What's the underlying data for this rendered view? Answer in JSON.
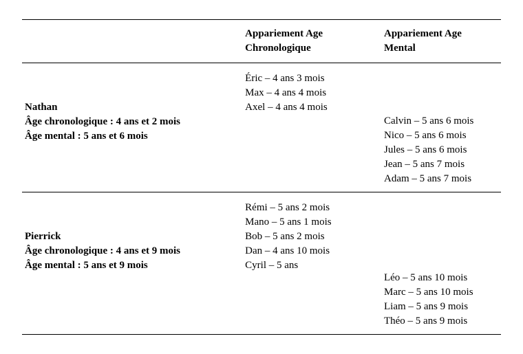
{
  "headers": {
    "chrono": "Appariement Age Chronologique",
    "mental": "Appariement Age Mental"
  },
  "subjects": [
    {
      "name": "Nathan",
      "age_chrono_label": "Âge chronologique : 4 ans et 2 mois",
      "age_mental_label": "Âge mental : 5 ans et 6 mois",
      "chrono_matches": [
        "Éric – 4 ans 3 mois",
        "Max – 4 ans 4 mois",
        "Axel – 4 ans 4 mois"
      ],
      "mental_matches": [
        "Calvin – 5 ans 6 mois",
        "Nico – 5 ans 6 mois",
        "Jules – 5 ans 6 mois",
        "Jean – 5 ans 7 mois",
        "Adam – 5 ans 7 mois"
      ]
    },
    {
      "name": "Pierrick",
      "age_chrono_label": "Âge chronologique : 4 ans et 9 mois",
      "age_mental_label": "Âge mental : 5 ans et 9 mois",
      "chrono_matches": [
        "Rémi – 5 ans 2 mois",
        "Mano – 5 ans 1 mois",
        "Bob – 5 ans 2 mois",
        "Dan – 4 ans 10 mois",
        "Cyril – 5 ans"
      ],
      "mental_matches": [
        "Léo – 5 ans 10 mois",
        "Marc – 5 ans 10 mois",
        "Liam – 5 ans 9 mois",
        "Théo – 5 ans 9 mois"
      ]
    }
  ]
}
